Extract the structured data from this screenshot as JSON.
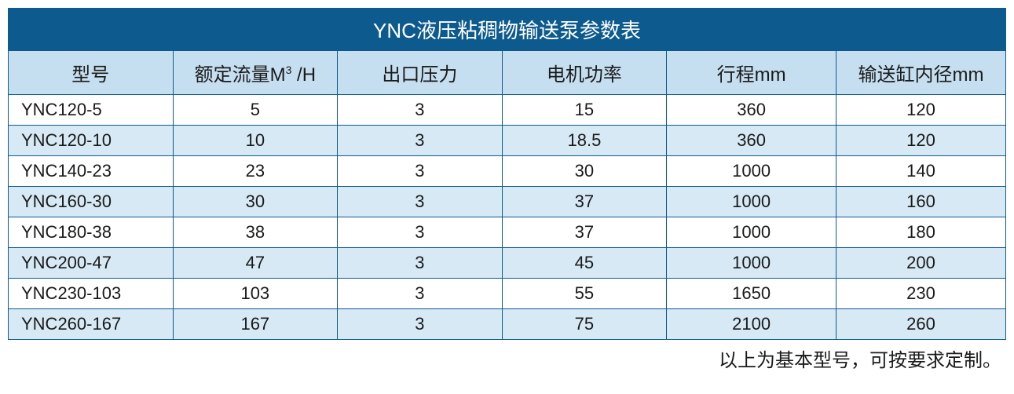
{
  "table": {
    "type": "table",
    "title": "YNC液压粘稠物输送泵参数表",
    "columns": [
      "型号",
      "额定流量M³/H",
      "出口压力",
      "电机功率",
      "行程mm",
      "输送缸内径mm"
    ],
    "column_widths_pct": [
      16.5,
      16.5,
      16.5,
      16.5,
      17,
      17
    ],
    "rows": [
      [
        "YNC120-5",
        "5",
        "3",
        "15",
        "360",
        "120"
      ],
      [
        "YNC120-10",
        "10",
        "3",
        "18.5",
        "360",
        "120"
      ],
      [
        "YNC140-23",
        "23",
        "3",
        "30",
        "1000",
        "140"
      ],
      [
        "YNC160-30",
        "30",
        "3",
        "37",
        "1000",
        "160"
      ],
      [
        "YNC180-38",
        "38",
        "3",
        "37",
        "1000",
        "180"
      ],
      [
        "YNC200-47",
        "47",
        "3",
        "45",
        "1000",
        "200"
      ],
      [
        "YNC230-103",
        "103",
        "3",
        "55",
        "1650",
        "230"
      ],
      [
        "YNC260-167",
        "167",
        "3",
        "75",
        "2100",
        "260"
      ]
    ],
    "footnote": "以上为基本型号，可按要求定制。",
    "colors": {
      "title_bg": "#0d5a8e",
      "title_text": "#ffffff",
      "header_bg": "#c6dff0",
      "row_odd_bg": "#ffffff",
      "row_even_bg": "#d7e9f4",
      "border": "#0d5a8e",
      "cell_text": "#1a1a1a"
    },
    "font": {
      "title_size_pt": 20,
      "header_size_pt": 18,
      "cell_size_pt": 17,
      "footnote_size_pt": 18
    }
  }
}
